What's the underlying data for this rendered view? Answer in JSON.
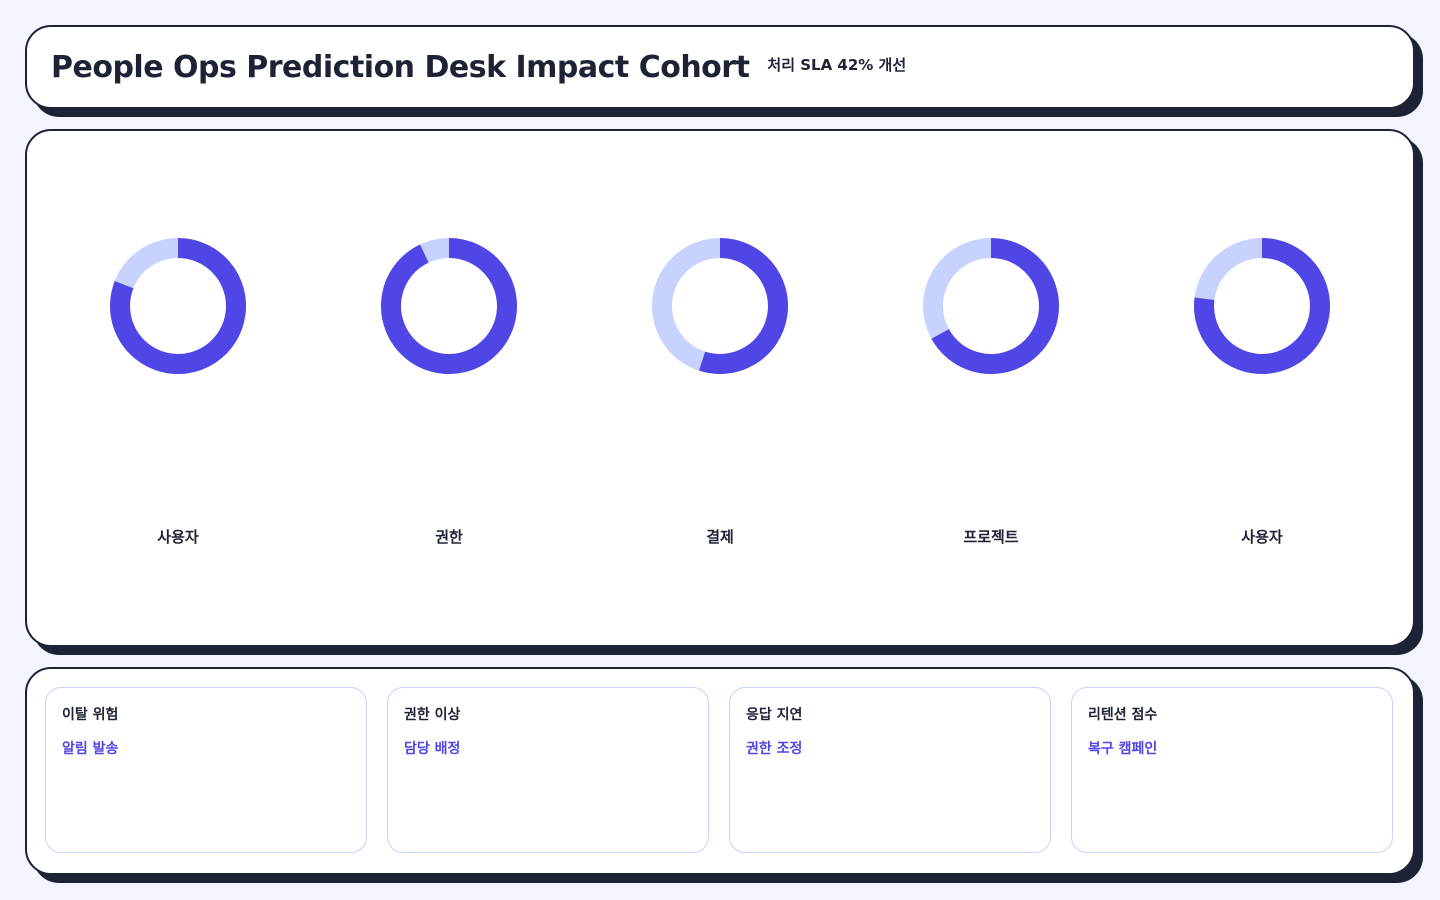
{
  "header": {
    "title": "People Ops Prediction Desk Impact Cohort",
    "subtitle": "처리 SLA 42% 개선"
  },
  "chart_data": {
    "type": "donut",
    "categories": [
      "사용자",
      "권한",
      "결제",
      "프로젝트",
      "사용자"
    ],
    "values": [
      81,
      93,
      55,
      67,
      77
    ],
    "ylim": [
      0,
      100
    ],
    "color": "#4f46e5",
    "track_color": "#c7d2fe"
  },
  "cards": [
    {
      "title": "이탈 위험",
      "action": "알림 발송"
    },
    {
      "title": "권한 이상",
      "action": "담당 배정"
    },
    {
      "title": "응답 지연",
      "action": "권한 조정"
    },
    {
      "title": "리텐션 점수",
      "action": "복구 캠페인"
    }
  ]
}
